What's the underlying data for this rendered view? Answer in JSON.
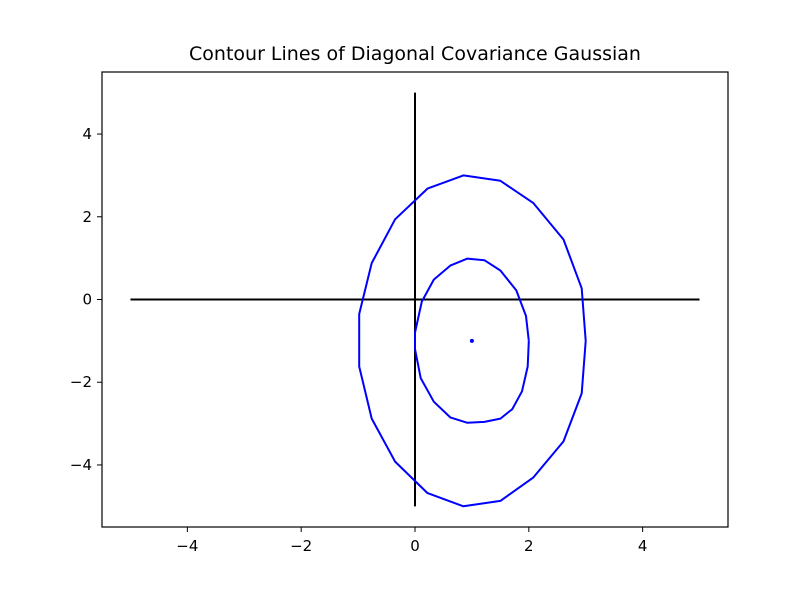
{
  "chart_data": {
    "type": "line",
    "title": "Contour Lines of Diagonal Covariance Gaussian",
    "xlabel": "",
    "ylabel": "",
    "xlim": [
      -5.5,
      5.5
    ],
    "ylim": [
      -5.5,
      5.5
    ],
    "xticks": [
      -4,
      -2,
      0,
      2,
      4
    ],
    "yticks": [
      -4,
      -2,
      0,
      2,
      4
    ],
    "xtick_labels": [
      "−4",
      "−2",
      "0",
      "2",
      "4"
    ],
    "ytick_labels": [
      "−4",
      "−2",
      "0",
      "2",
      "4"
    ],
    "grid": false,
    "axis_lines": [
      {
        "x": [
          -5,
          5
        ],
        "y": [
          0,
          0
        ],
        "color": "#000000"
      },
      {
        "x": [
          0,
          0
        ],
        "y": [
          -5,
          5
        ],
        "color": "#000000"
      }
    ],
    "series": [
      {
        "color": "#0000ff",
        "x": [
          2.0,
          1.98,
          1.88,
          1.71,
          1.5,
          1.22,
          0.92,
          0.62,
          0.33,
          0.1,
          0.0,
          0.0,
          0.12,
          0.33,
          0.62,
          0.92,
          1.22,
          1.5,
          1.78,
          1.95,
          2.0
        ],
        "y": [
          -1.0,
          -1.62,
          -2.22,
          -2.65,
          -2.88,
          -2.96,
          -2.98,
          -2.85,
          -2.47,
          -1.9,
          -1.2,
          -0.8,
          -0.05,
          0.48,
          0.82,
          0.99,
          0.95,
          0.7,
          0.22,
          -0.4,
          -1.0
        ]
      },
      {
        "color": "#0000ff",
        "x": [
          3.0,
          2.93,
          2.61,
          2.08,
          1.5,
          0.85,
          0.22,
          -0.35,
          -0.76,
          -0.98,
          -0.98,
          -0.76,
          -0.35,
          0.22,
          0.85,
          1.5,
          2.08,
          2.61,
          2.93,
          3.0
        ],
        "y": [
          -1.0,
          -2.27,
          -3.43,
          -4.3,
          -4.87,
          -5.0,
          -4.68,
          -3.92,
          -2.88,
          -1.62,
          -0.35,
          0.88,
          1.94,
          2.68,
          3.0,
          2.87,
          2.33,
          1.45,
          0.27,
          -1.0
        ]
      }
    ],
    "points": [
      {
        "x": 1.0,
        "y": -1.0,
        "color": "#0000ff"
      }
    ]
  }
}
